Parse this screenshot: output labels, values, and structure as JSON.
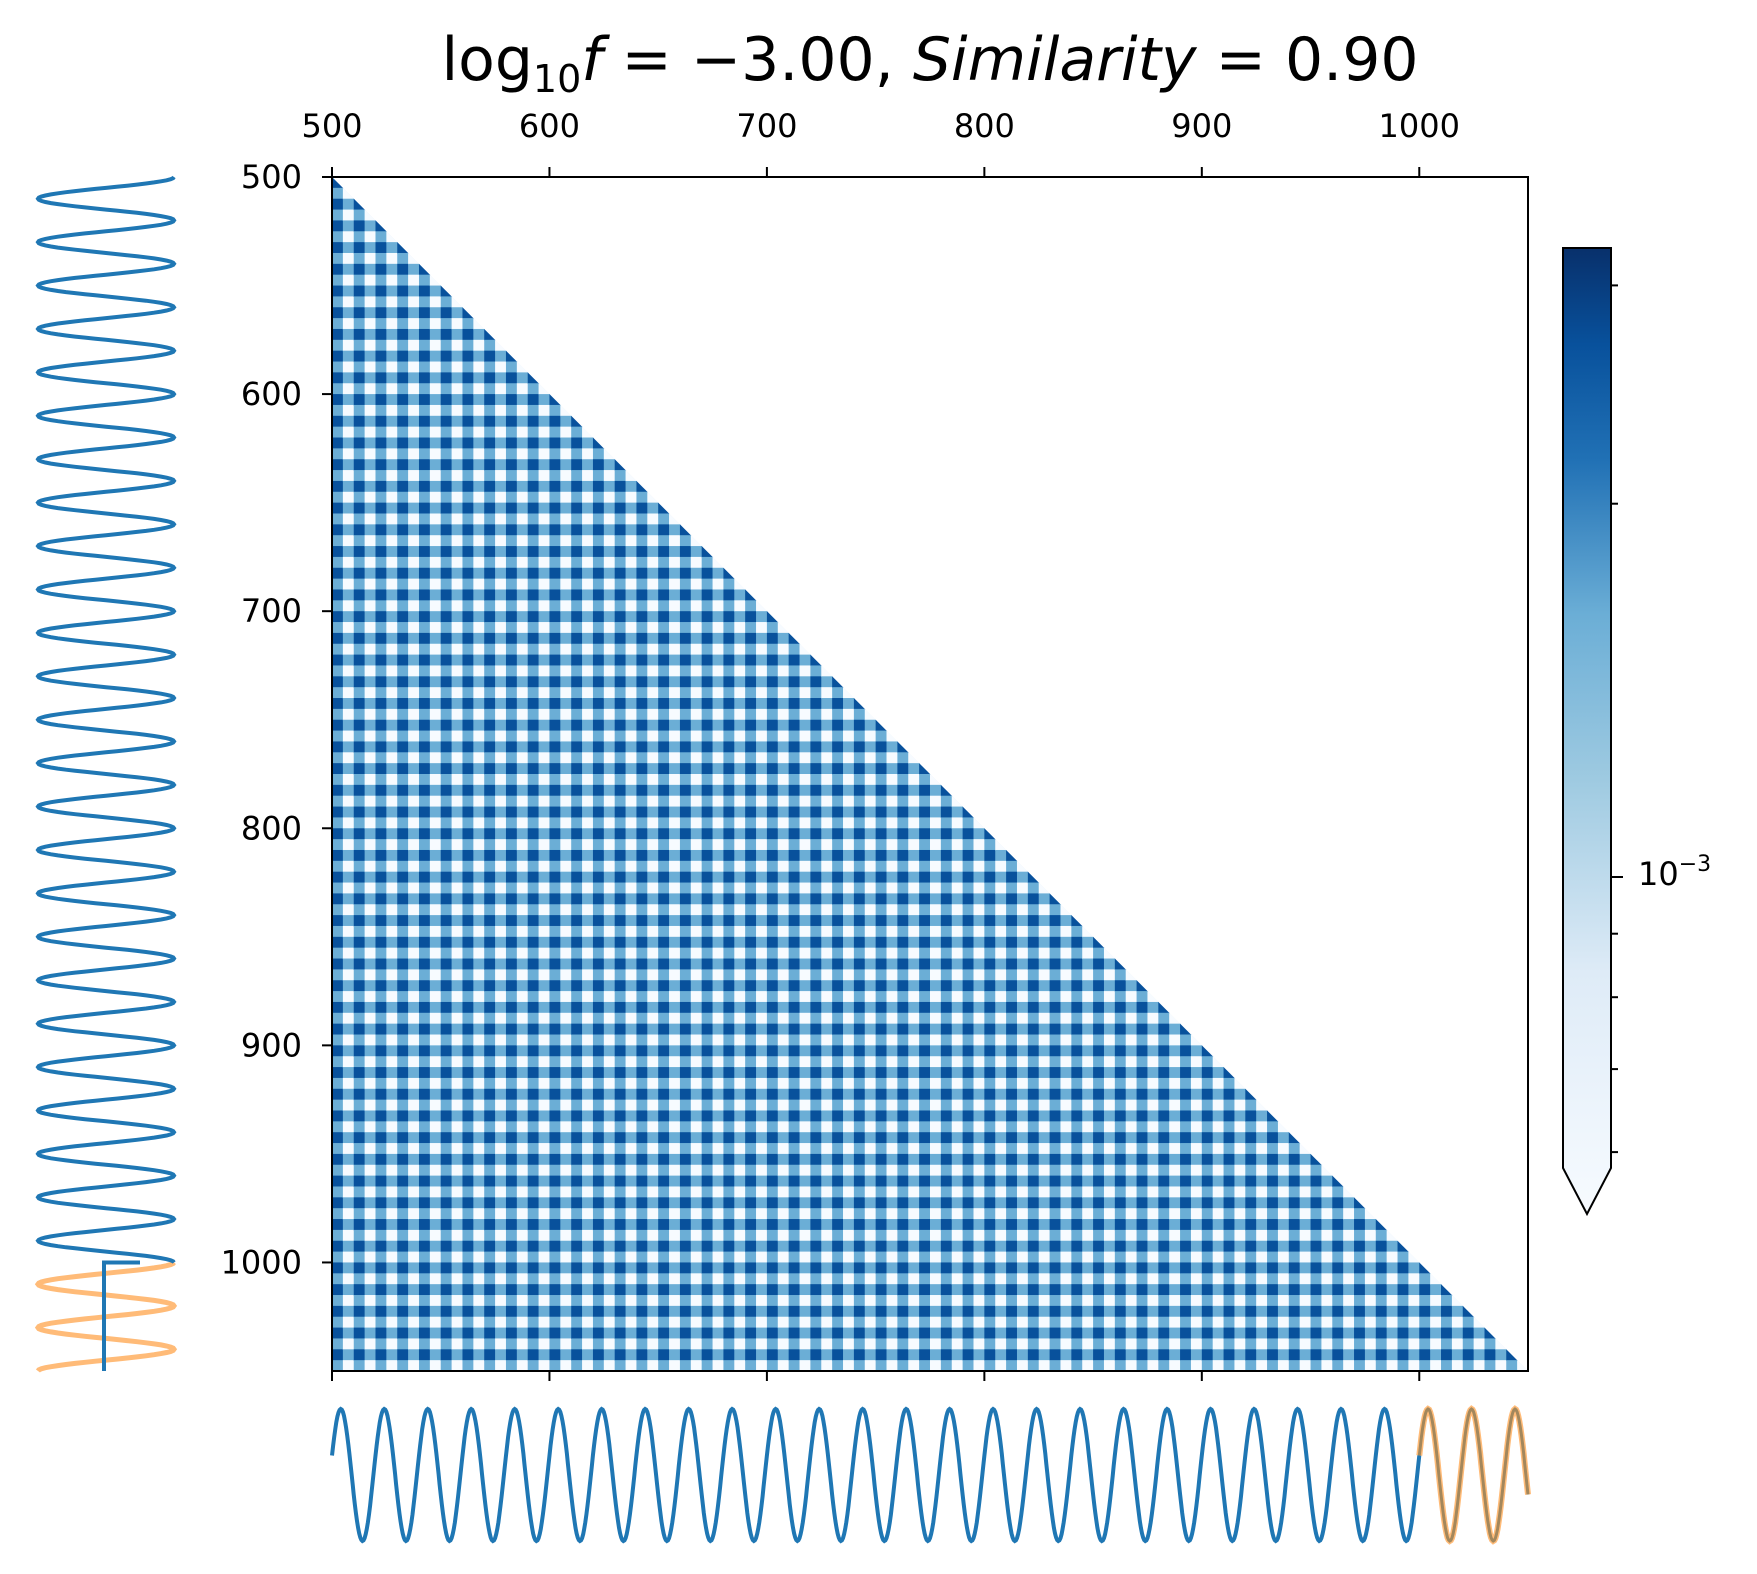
{
  "chart_data": {
    "type": "heatmap",
    "title": {
      "prefix": "log",
      "subscript": "10",
      "var": "f",
      "equals": " = ",
      "fvalue": "−3.00",
      "comma": ", ",
      "sim_label": "Similarity",
      "sim_value": "0.90"
    },
    "x_range": [
      500,
      1050
    ],
    "y_range": [
      500,
      1050
    ],
    "x_ticks": [
      500,
      600,
      700,
      800,
      900,
      1000
    ],
    "y_ticks": [
      500,
      600,
      700,
      800,
      900,
      1000
    ],
    "matrix": "lower-triangular",
    "pattern_period": 20,
    "colormap": "Blues",
    "colorbar": {
      "scale": "log",
      "label_base": "10",
      "label_exponent": "−3",
      "label_value": 0.001,
      "extend": "min"
    },
    "side_signal": {
      "period": 20,
      "main_range": [
        500,
        1000
      ],
      "highlight_range": [
        1000,
        1050
      ],
      "main_color": "#1f77b4",
      "highlight_color": "#ffbb78"
    }
  },
  "colors": {
    "dark": "#08306b",
    "mid": "#2171b5",
    "light": "#c6dbef",
    "white": "#f7fbff",
    "signal": "#1f77b4",
    "highlight": "#ffbb78"
  }
}
